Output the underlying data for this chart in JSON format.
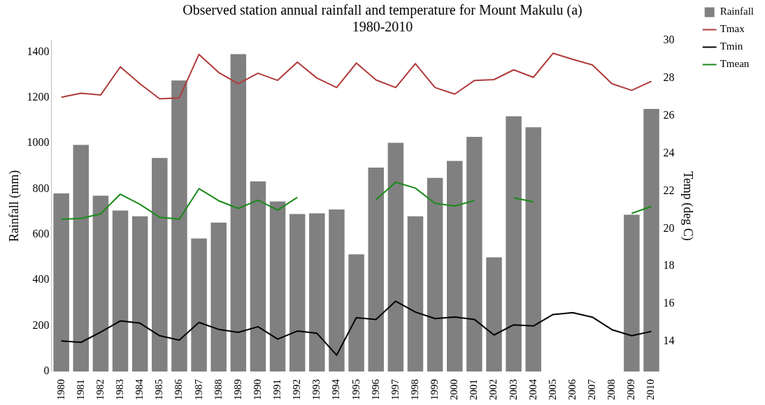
{
  "chart_data": {
    "type": "bar",
    "title": "Observed station annual rainfall and temperature for Mount Makulu (a) 1980-2010",
    "ylabel": "Rainfall (mm)",
    "y2label": "Temp (deg C)",
    "categories": [
      "1980",
      "1981",
      "1982",
      "1983",
      "1984",
      "1985",
      "1986",
      "1987",
      "1988",
      "1989",
      "1990",
      "1991",
      "1992",
      "1993",
      "1994",
      "1995",
      "1996",
      "1997",
      "1998",
      "1999",
      "2000",
      "2001",
      "2002",
      "2003",
      "2004",
      "2005",
      "2006",
      "2007",
      "2008",
      "2009",
      "2010"
    ],
    "series": [
      {
        "name": "Rainfall",
        "color": "#808080",
        "values": [
          780,
          993,
          770,
          705,
          680,
          935,
          1275,
          583,
          652,
          1390,
          833,
          745,
          690,
          693,
          710,
          513,
          893,
          1002,
          680,
          848,
          922,
          1028,
          500,
          1118,
          1070,
          null,
          null,
          null,
          null,
          687,
          1150
        ]
      },
      {
        "name": "Tmax",
        "type": "line",
        "axis": "y2",
        "color": "#b03a3a",
        "values": [
          26.98,
          27.2,
          27.1,
          28.6,
          27.7,
          26.9,
          26.95,
          29.26,
          28.3,
          27.7,
          28.26,
          27.88,
          28.85,
          28.0,
          27.5,
          28.8,
          27.9,
          27.5,
          28.77,
          27.5,
          27.15,
          27.87,
          27.92,
          28.44,
          28.04,
          29.32,
          29.0,
          28.7,
          27.7,
          27.35,
          27.83
        ]
      },
      {
        "name": "Tmin",
        "type": "line",
        "axis": "y2",
        "color": "#000000",
        "values": [
          14.02,
          13.95,
          14.49,
          15.09,
          14.97,
          14.3,
          14.07,
          15.01,
          14.64,
          14.48,
          14.78,
          14.12,
          14.55,
          14.43,
          13.27,
          15.26,
          15.17,
          16.14,
          15.56,
          15.21,
          15.3,
          15.17,
          14.34,
          14.88,
          14.82,
          15.43,
          15.53,
          15.29,
          14.62,
          14.3,
          14.53
        ]
      },
      {
        "name": "Tmean",
        "type": "line",
        "axis": "y2",
        "color": "#1a8a1a",
        "values": [
          20.49,
          20.54,
          20.78,
          21.83,
          21.29,
          20.6,
          20.5,
          22.12,
          21.48,
          21.07,
          21.51,
          20.98,
          21.66,
          null,
          null,
          null,
          21.53,
          22.46,
          22.15,
          21.34,
          21.2,
          21.49,
          null,
          21.64,
          21.42,
          null,
          null,
          null,
          null,
          20.81,
          21.17
        ]
      }
    ],
    "ylim": [
      0,
      1450
    ],
    "yticks": [
      0,
      200,
      400,
      600,
      800,
      1000,
      1200,
      1400
    ],
    "y2lim": [
      12.4,
      30
    ],
    "y2ticks": [
      14,
      16,
      18,
      20,
      22,
      24,
      26,
      28,
      30
    ],
    "grid": false,
    "legend": "top right",
    "marker": "none",
    "line_style": "solid"
  }
}
